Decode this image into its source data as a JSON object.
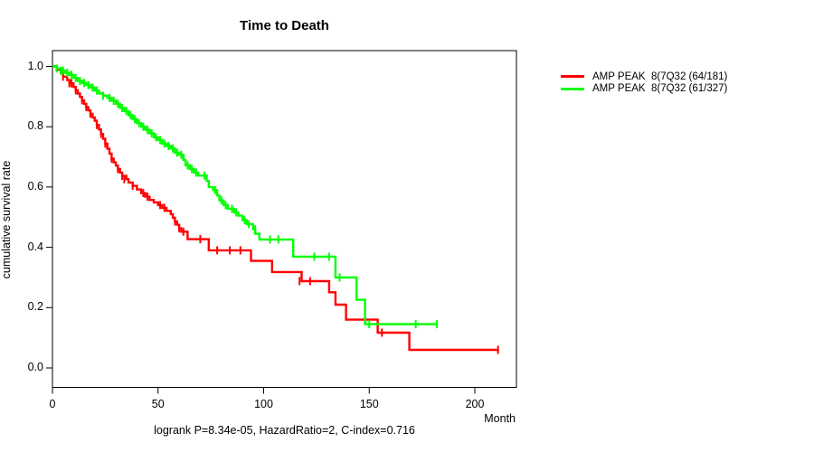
{
  "title": "Time to Death",
  "annotation": "logrank P=8.34e-05, HazardRatio=2, C-index=0.716",
  "axes": {
    "x_unit_label": "Month",
    "y_label": "cumulative survival rate",
    "x_ticks": [
      "0",
      "50",
      "100",
      "150",
      "200"
    ],
    "y_ticks": [
      "1.0",
      "0.8",
      "0.6",
      "0.4",
      "0.2",
      "0.0"
    ]
  },
  "legend": {
    "items": [
      {
        "label": "AMP PEAK  8(7Q32 (64/181)",
        "color": "#ff0000"
      },
      {
        "label": "AMP PEAK  8(7Q32 (61/327)",
        "color": "#00ff00"
      }
    ]
  },
  "chart_data": {
    "type": "line",
    "kind": "kaplan-meier-survival",
    "title": "Time to Death",
    "xlabel": "Month",
    "ylabel": "cumulative survival rate",
    "xlim": [
      0,
      220
    ],
    "ylim": [
      0,
      1.0
    ],
    "x_ticks": [
      0,
      50,
      100,
      150,
      200
    ],
    "y_ticks": [
      1.0,
      0.8,
      0.6,
      0.4,
      0.2,
      0.0
    ],
    "grid": false,
    "legend_position": "outside-right",
    "frame": "box",
    "stats": {
      "logrank_p": "8.34e-05",
      "hazard_ratio": "2",
      "c_index": "0.716"
    },
    "series": [
      {
        "name": "AMP PEAK  8(7Q32 (64/181)",
        "color": "#ff0000",
        "events_over_total": "64/181",
        "steps": [
          [
            0,
            1.0
          ],
          [
            2,
            0.989
          ],
          [
            4,
            0.978
          ],
          [
            5,
            0.966
          ],
          [
            7,
            0.955
          ],
          [
            8,
            0.944
          ],
          [
            10,
            0.932
          ],
          [
            11,
            0.921
          ],
          [
            12,
            0.91
          ],
          [
            13,
            0.899
          ],
          [
            14,
            0.888
          ],
          [
            15,
            0.876
          ],
          [
            16,
            0.865
          ],
          [
            17,
            0.854
          ],
          [
            18,
            0.843
          ],
          [
            19,
            0.831
          ],
          [
            20,
            0.82
          ],
          [
            21,
            0.806
          ],
          [
            22,
            0.791
          ],
          [
            23,
            0.776
          ],
          [
            24,
            0.76
          ],
          [
            25,
            0.744
          ],
          [
            26,
            0.727
          ],
          [
            27,
            0.711
          ],
          [
            28,
            0.694
          ],
          [
            29,
            0.682
          ],
          [
            30,
            0.671
          ],
          [
            31,
            0.66
          ],
          [
            32,
            0.648
          ],
          [
            33,
            0.637
          ],
          [
            35,
            0.626
          ],
          [
            36,
            0.615
          ],
          [
            38,
            0.604
          ],
          [
            40,
            0.592
          ],
          [
            42,
            0.58
          ],
          [
            44,
            0.568
          ],
          [
            46,
            0.557
          ],
          [
            48,
            0.549
          ],
          [
            50,
            0.54
          ],
          [
            52,
            0.531
          ],
          [
            54,
            0.521
          ],
          [
            56,
            0.51
          ],
          [
            57,
            0.498
          ],
          [
            58,
            0.486
          ],
          [
            59,
            0.475
          ],
          [
            60,
            0.463
          ],
          [
            61,
            0.452
          ],
          [
            64,
            0.427
          ],
          [
            74,
            0.39
          ],
          [
            94,
            0.355
          ],
          [
            104,
            0.318
          ],
          [
            118,
            0.288
          ],
          [
            131,
            0.251
          ],
          [
            134,
            0.21
          ],
          [
            139,
            0.16
          ],
          [
            154,
            0.117
          ],
          [
            169,
            0.06
          ],
          [
            211,
            0.06
          ]
        ],
        "censor_marks": [
          [
            5,
            0.966
          ],
          [
            8,
            0.944
          ],
          [
            9,
            0.944
          ],
          [
            11,
            0.921
          ],
          [
            14,
            0.888
          ],
          [
            16,
            0.865
          ],
          [
            18,
            0.843
          ],
          [
            21,
            0.806
          ],
          [
            23,
            0.776
          ],
          [
            25,
            0.744
          ],
          [
            28,
            0.694
          ],
          [
            31,
            0.66
          ],
          [
            33,
            0.637
          ],
          [
            34,
            0.626
          ],
          [
            38,
            0.604
          ],
          [
            43,
            0.58
          ],
          [
            45,
            0.568
          ],
          [
            51,
            0.54
          ],
          [
            53,
            0.531
          ],
          [
            58,
            0.486
          ],
          [
            60,
            0.463
          ],
          [
            62,
            0.452
          ],
          [
            70,
            0.427
          ],
          [
            78,
            0.39
          ],
          [
            84,
            0.39
          ],
          [
            89,
            0.39
          ],
          [
            117,
            0.288
          ],
          [
            122,
            0.288
          ],
          [
            156,
            0.117
          ],
          [
            211,
            0.06
          ]
        ]
      },
      {
        "name": "AMP PEAK  8(7Q32 (61/327)",
        "color": "#00ff00",
        "events_over_total": "61/327",
        "steps": [
          [
            0,
            1.0
          ],
          [
            2,
            0.993
          ],
          [
            4,
            0.986
          ],
          [
            6,
            0.979
          ],
          [
            8,
            0.972
          ],
          [
            10,
            0.962
          ],
          [
            12,
            0.952
          ],
          [
            14,
            0.945
          ],
          [
            16,
            0.938
          ],
          [
            18,
            0.93
          ],
          [
            20,
            0.92
          ],
          [
            22,
            0.91
          ],
          [
            24,
            0.903
          ],
          [
            26,
            0.896
          ],
          [
            28,
            0.886
          ],
          [
            30,
            0.876
          ],
          [
            32,
            0.862
          ],
          [
            34,
            0.852
          ],
          [
            36,
            0.838
          ],
          [
            38,
            0.825
          ],
          [
            40,
            0.812
          ],
          [
            42,
            0.8
          ],
          [
            44,
            0.79
          ],
          [
            46,
            0.778
          ],
          [
            48,
            0.765
          ],
          [
            50,
            0.756
          ],
          [
            52,
            0.744
          ],
          [
            54,
            0.736
          ],
          [
            56,
            0.728
          ],
          [
            58,
            0.714
          ],
          [
            60,
            0.707
          ],
          [
            62,
            0.69
          ],
          [
            63,
            0.672
          ],
          [
            65,
            0.66
          ],
          [
            67,
            0.648
          ],
          [
            69,
            0.638
          ],
          [
            73,
            0.62
          ],
          [
            74,
            0.6
          ],
          [
            76,
            0.59
          ],
          [
            78,
            0.572
          ],
          [
            79,
            0.556
          ],
          [
            81,
            0.54
          ],
          [
            83,
            0.528
          ],
          [
            86,
            0.516
          ],
          [
            88,
            0.505
          ],
          [
            90,
            0.49
          ],
          [
            92,
            0.477
          ],
          [
            95,
            0.46
          ],
          [
            96,
            0.445
          ],
          [
            98,
            0.426
          ],
          [
            114,
            0.369
          ],
          [
            134,
            0.3
          ],
          [
            144,
            0.226
          ],
          [
            148,
            0.145
          ],
          [
            182,
            0.145
          ]
        ],
        "censor_marks": [
          [
            2,
            0.993
          ],
          [
            4,
            0.986
          ],
          [
            5,
            0.986
          ],
          [
            7,
            0.979
          ],
          [
            9,
            0.972
          ],
          [
            11,
            0.962
          ],
          [
            13,
            0.952
          ],
          [
            15,
            0.945
          ],
          [
            17,
            0.938
          ],
          [
            19,
            0.93
          ],
          [
            21,
            0.92
          ],
          [
            24,
            0.903
          ],
          [
            27,
            0.896
          ],
          [
            29,
            0.886
          ],
          [
            31,
            0.876
          ],
          [
            33,
            0.862
          ],
          [
            35,
            0.852
          ],
          [
            37,
            0.838
          ],
          [
            39,
            0.825
          ],
          [
            41,
            0.812
          ],
          [
            43,
            0.8
          ],
          [
            45,
            0.79
          ],
          [
            47,
            0.778
          ],
          [
            49,
            0.765
          ],
          [
            51,
            0.756
          ],
          [
            53,
            0.744
          ],
          [
            55,
            0.736
          ],
          [
            57,
            0.728
          ],
          [
            59,
            0.714
          ],
          [
            61,
            0.707
          ],
          [
            64,
            0.672
          ],
          [
            66,
            0.66
          ],
          [
            68,
            0.648
          ],
          [
            72,
            0.638
          ],
          [
            77,
            0.59
          ],
          [
            80,
            0.556
          ],
          [
            82,
            0.54
          ],
          [
            85,
            0.528
          ],
          [
            87,
            0.516
          ],
          [
            91,
            0.49
          ],
          [
            93,
            0.477
          ],
          [
            96,
            0.46
          ],
          [
            103,
            0.426
          ],
          [
            107,
            0.426
          ],
          [
            124,
            0.369
          ],
          [
            131,
            0.369
          ],
          [
            136,
            0.3
          ],
          [
            150,
            0.145
          ],
          [
            172,
            0.145
          ],
          [
            182,
            0.145
          ]
        ]
      }
    ]
  }
}
